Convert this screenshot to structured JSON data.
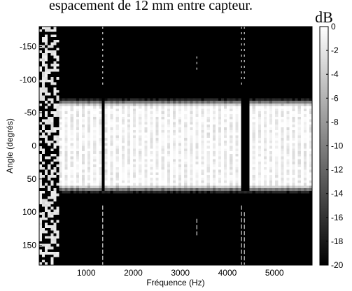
{
  "page": {
    "caption_text": "espacement de 12 mm entre capteur."
  },
  "chart_data": {
    "type": "heatmap",
    "title": "",
    "xlabel": "Fréquence (Hz)",
    "ylabel": "Angle (degrés)",
    "xlim": [
      0,
      5800
    ],
    "ylim": [
      -180,
      180
    ],
    "x_ticks": [
      1000,
      2000,
      3000,
      4000,
      5000
    ],
    "x_tick_labels": [
      "1000",
      "2000",
      "3000",
      "4000",
      "5000"
    ],
    "y_ticks": [
      -150,
      -100,
      -50,
      0,
      50,
      100,
      150
    ],
    "y_tick_labels": [
      "-150",
      "-100",
      "-50",
      "0",
      "50",
      "100",
      "150"
    ],
    "y_reversed": true,
    "colorbar": {
      "unit": "dB",
      "range": [
        -20,
        0
      ],
      "ticks": [
        0,
        -2,
        -4,
        -6,
        -8,
        -10,
        -12,
        -14,
        -16,
        -18,
        -20
      ],
      "tick_labels": [
        "0",
        "-2",
        "-4",
        "-6",
        "-8",
        "-10",
        "-12",
        "-14",
        "-16",
        "-18",
        "-20"
      ],
      "colormap": "gray"
    },
    "colors": {
      "high": "#ffffff",
      "low": "#000000"
    },
    "main_lobe": {
      "angle_half_width_deg": 60,
      "transition_width_deg": 12,
      "level_db": 0
    },
    "noisy_low_frequency_region": [
      0,
      400
    ],
    "notches_hz": [
      1330,
      1380,
      4300,
      4370,
      4420
    ],
    "side_streaks": [
      {
        "freq_hz": 1350,
        "angle_range": [
          -180,
          -90
        ]
      },
      {
        "freq_hz": 1350,
        "angle_range": [
          90,
          180
        ]
      },
      {
        "freq_hz": 3350,
        "angle_range": [
          -135,
          -110
        ]
      },
      {
        "freq_hz": 3350,
        "angle_range": [
          110,
          135
        ]
      },
      {
        "freq_hz": 4300,
        "angle_range": [
          -180,
          -90
        ]
      },
      {
        "freq_hz": 4300,
        "angle_range": [
          90,
          180
        ]
      },
      {
        "freq_hz": 4360,
        "angle_range": [
          -180,
          -100
        ]
      },
      {
        "freq_hz": 4360,
        "angle_range": [
          100,
          180
        ]
      }
    ]
  }
}
